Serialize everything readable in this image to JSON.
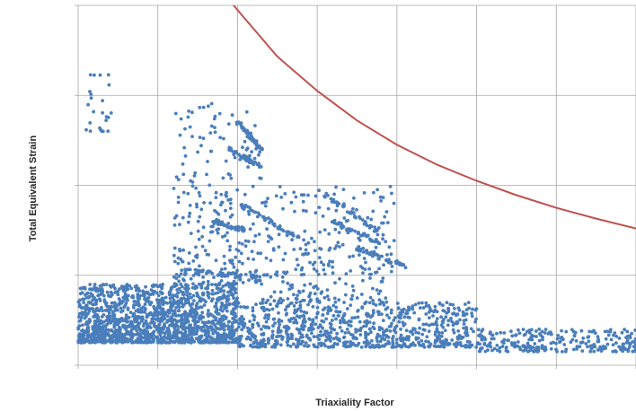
{
  "chart_data": {
    "type": "scatter",
    "xlabel": "Triaxiality Factor",
    "ylabel": "Total Equivalent Strain",
    "xlim": [
      0,
      7
    ],
    "ylim": [
      0,
      4
    ],
    "grid": true,
    "tick_labels_visible": false,
    "colors": {
      "points": "#4a7ebb",
      "curve": "#c0504d",
      "grid": "#a6a6a6"
    },
    "series": [
      {
        "type": "scatter",
        "point_count_approx": 4000,
        "x_range": [
          0,
          7
        ],
        "y_range": [
          0.15,
          3.25
        ],
        "clusters": [
          {
            "x": [
              0.0,
              2.0
            ],
            "y": [
              0.25,
              0.9
            ],
            "density": "very high"
          },
          {
            "x": [
              2.0,
              5.0
            ],
            "y": [
              0.2,
              0.7
            ],
            "density": "high"
          },
          {
            "x": [
              5.0,
              7.0
            ],
            "y": [
              0.15,
              0.4
            ],
            "density": "medium"
          },
          {
            "x": [
              1.2,
              2.3
            ],
            "y": [
              0.9,
              2.95
            ],
            "density": "medium"
          },
          {
            "x": [
              2.3,
              4.0
            ],
            "y": [
              0.7,
              2.0
            ],
            "density": "medium"
          },
          {
            "x": [
              0.1,
              0.45
            ],
            "y": [
              2.6,
              3.25
            ],
            "density": "low"
          }
        ],
        "bands": [
          {
            "x": [
              2.0,
              2.3
            ],
            "y": [
              2.7,
              2.4
            ]
          },
          {
            "x": [
              1.9,
              2.3
            ],
            "y": [
              2.4,
              2.2
            ]
          },
          {
            "x": [
              1.7,
              2.1
            ],
            "y": [
              1.6,
              1.5
            ]
          },
          {
            "x": [
              2.0,
              2.8
            ],
            "y": [
              1.8,
              1.4
            ]
          },
          {
            "x": [
              3.1,
              3.8
            ],
            "y": [
              1.9,
              1.45
            ]
          },
          {
            "x": [
              3.2,
              3.8
            ],
            "y": [
              1.6,
              1.35
            ]
          },
          {
            "x": [
              3.5,
              4.1
            ],
            "y": [
              1.3,
              1.1
            ]
          },
          {
            "x": [
              1.3,
              2.4
            ],
            "y": [
              1.05,
              0.98
            ]
          }
        ]
      },
      {
        "type": "line",
        "x": [
          1.95,
          2.5,
          3.0,
          3.5,
          4.0,
          4.5,
          5.0,
          5.5,
          6.0,
          6.5,
          7.0
        ],
        "y": [
          4.0,
          3.43,
          3.05,
          2.72,
          2.45,
          2.23,
          2.05,
          1.89,
          1.75,
          1.63,
          1.52
        ]
      }
    ]
  }
}
